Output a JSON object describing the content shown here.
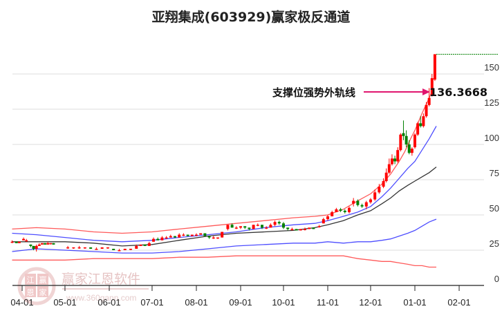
{
  "title": "亚翔集成(603929)赢家极反通道",
  "watermark": {
    "logo_chars": [
      "江",
      "赢",
      "恩",
      "家"
    ],
    "name": "赢家江恩软件",
    "url": "www.360gann.com"
  },
  "annotation": {
    "label": "支撑位强势外轨线",
    "value": "136.3668",
    "arrow_color": "#e0156e"
  },
  "colors": {
    "up": "#ff0000",
    "down": "#008000",
    "outer_band": "#ff3030",
    "inner_band": "#2020ff",
    "mid_line": "#111111",
    "grid": "#dddddd",
    "marker_line": "#008000"
  },
  "chart_data": {
    "type": "line",
    "title": "亚翔集成(603929)赢家极反通道",
    "xlabel": "",
    "ylabel": "",
    "ylim": [
      0,
      160
    ],
    "y_ticks": [
      0,
      25,
      50,
      75,
      100,
      125,
      150
    ],
    "x_ticks": [
      "04-01",
      "05-01",
      "06-01",
      "07-01",
      "08-01",
      "09-01",
      "10-01",
      "11-01",
      "12-01",
      "01-01",
      "02-01"
    ],
    "x_tick_days": [
      0,
      30,
      61,
      91,
      122,
      153,
      183,
      214,
      244,
      275,
      306
    ],
    "grid": true,
    "legend": "none",
    "annotation": {
      "text": "支撑位强势外轨线",
      "value": 136.3668
    },
    "top_marker_level": 164,
    "series": [
      {
        "name": "outer_upper",
        "role": "outer_band",
        "points": [
          [
            -7,
            40
          ],
          [
            10,
            41
          ],
          [
            30,
            40
          ],
          [
            50,
            38
          ],
          [
            70,
            37
          ],
          [
            91,
            38
          ],
          [
            110,
            40
          ],
          [
            130,
            42
          ],
          [
            150,
            44
          ],
          [
            170,
            46
          ],
          [
            190,
            48
          ],
          [
            205,
            49
          ],
          [
            214,
            50
          ],
          [
            225,
            54
          ],
          [
            235,
            60
          ],
          [
            244,
            65
          ],
          [
            252,
            72
          ],
          [
            258,
            79
          ],
          [
            264,
            88
          ],
          [
            268,
            95
          ],
          [
            272,
            104
          ],
          [
            275,
            110
          ],
          [
            280,
            122
          ],
          [
            285,
            133
          ],
          [
            288,
            140
          ]
        ]
      },
      {
        "name": "inner_upper",
        "role": "inner_band",
        "points": [
          [
            -7,
            37
          ],
          [
            10,
            36
          ],
          [
            30,
            34
          ],
          [
            50,
            32
          ],
          [
            70,
            31
          ],
          [
            91,
            32
          ],
          [
            110,
            34
          ],
          [
            130,
            36
          ],
          [
            150,
            38
          ],
          [
            170,
            41
          ],
          [
            190,
            43
          ],
          [
            205,
            44
          ],
          [
            214,
            46
          ],
          [
            225,
            49
          ],
          [
            235,
            52
          ],
          [
            244,
            56
          ],
          [
            252,
            63
          ],
          [
            258,
            69
          ],
          [
            264,
            76
          ],
          [
            270,
            83
          ],
          [
            275,
            88
          ],
          [
            280,
            96
          ],
          [
            285,
            104
          ],
          [
            290,
            113
          ]
        ]
      },
      {
        "name": "middle",
        "role": "mid_line",
        "points": [
          [
            -7,
            31
          ],
          [
            10,
            31
          ],
          [
            30,
            31
          ],
          [
            50,
            30
          ],
          [
            70,
            28
          ],
          [
            91,
            29
          ],
          [
            110,
            32
          ],
          [
            130,
            35
          ],
          [
            150,
            37
          ],
          [
            170,
            38
          ],
          [
            190,
            39
          ],
          [
            205,
            41
          ],
          [
            214,
            43
          ],
          [
            225,
            46
          ],
          [
            235,
            50
          ],
          [
            244,
            53
          ],
          [
            252,
            58
          ],
          [
            258,
            62
          ],
          [
            264,
            67
          ],
          [
            270,
            71
          ],
          [
            275,
            74
          ],
          [
            280,
            77
          ],
          [
            285,
            80
          ],
          [
            290,
            84
          ]
        ]
      },
      {
        "name": "inner_lower",
        "role": "inner_band",
        "points": [
          [
            -7,
            24
          ],
          [
            10,
            26
          ],
          [
            30,
            25
          ],
          [
            50,
            24
          ],
          [
            70,
            23
          ],
          [
            91,
            23
          ],
          [
            110,
            24
          ],
          [
            130,
            26
          ],
          [
            150,
            28
          ],
          [
            170,
            29
          ],
          [
            190,
            30
          ],
          [
            205,
            30
          ],
          [
            214,
            31
          ],
          [
            225,
            30
          ],
          [
            235,
            31
          ],
          [
            244,
            31
          ],
          [
            252,
            32
          ],
          [
            258,
            33
          ],
          [
            264,
            35
          ],
          [
            270,
            37
          ],
          [
            275,
            39
          ],
          [
            280,
            42
          ],
          [
            285,
            45
          ],
          [
            290,
            47
          ]
        ]
      },
      {
        "name": "outer_lower",
        "role": "outer_band",
        "points": [
          [
            -7,
            18
          ],
          [
            10,
            18
          ],
          [
            30,
            18
          ],
          [
            50,
            19
          ],
          [
            70,
            19
          ],
          [
            91,
            19
          ],
          [
            110,
            20
          ],
          [
            130,
            20
          ],
          [
            150,
            21
          ],
          [
            170,
            21
          ],
          [
            190,
            21
          ],
          [
            205,
            21
          ],
          [
            214,
            21
          ],
          [
            225,
            21
          ],
          [
            235,
            19
          ],
          [
            244,
            18
          ],
          [
            252,
            17
          ],
          [
            258,
            17
          ],
          [
            264,
            16
          ],
          [
            270,
            15
          ],
          [
            275,
            14
          ],
          [
            280,
            14
          ],
          [
            285,
            13
          ],
          [
            290,
            13
          ]
        ]
      }
    ],
    "candles": [
      {
        "d": -7,
        "o": 31,
        "c": 31,
        "h": 32,
        "l": 30
      },
      {
        "d": -4,
        "o": 31,
        "c": 30,
        "h": 31,
        "l": 30
      },
      {
        "d": -2,
        "o": 30,
        "c": 31,
        "h": 31,
        "l": 30
      },
      {
        "d": 1,
        "o": 32,
        "c": 33,
        "h": 34,
        "l": 32
      },
      {
        "d": 3,
        "o": 32,
        "c": 32,
        "h": 33,
        "l": 31
      },
      {
        "d": 6,
        "o": 29,
        "c": 28,
        "h": 29,
        "l": 27
      },
      {
        "d": 8,
        "o": 28,
        "c": 26,
        "h": 28,
        "l": 25
      },
      {
        "d": 10,
        "o": 26,
        "c": 28,
        "h": 29,
        "l": 24
      },
      {
        "d": 12,
        "o": 28,
        "c": 29,
        "h": 30,
        "l": 28
      },
      {
        "d": 14,
        "o": 29,
        "c": 30,
        "h": 30,
        "l": 29
      },
      {
        "d": 16,
        "o": 30,
        "c": 29,
        "h": 30,
        "l": 29
      },
      {
        "d": 18,
        "o": 29,
        "c": 30,
        "h": 31,
        "l": 29
      },
      {
        "d": 20,
        "o": 30,
        "c": 30,
        "h": 30,
        "l": 29
      },
      {
        "d": 22,
        "o": 30,
        "c": 29,
        "h": 30,
        "l": 29
      },
      {
        "d": 32,
        "o": 27,
        "c": 27,
        "h": 28,
        "l": 26
      },
      {
        "d": 36,
        "o": 27,
        "c": 27,
        "h": 27,
        "l": 26
      },
      {
        "d": 40,
        "o": 27,
        "c": 27,
        "h": 28,
        "l": 26
      },
      {
        "d": 44,
        "o": 27,
        "c": 27,
        "h": 27,
        "l": 26
      },
      {
        "d": 48,
        "o": 27,
        "c": 26,
        "h": 27,
        "l": 26
      },
      {
        "d": 52,
        "o": 26,
        "c": 26,
        "h": 27,
        "l": 26
      },
      {
        "d": 56,
        "o": 26,
        "c": 27,
        "h": 27,
        "l": 26
      },
      {
        "d": 60,
        "o": 27,
        "c": 27,
        "h": 27,
        "l": 26
      },
      {
        "d": 64,
        "o": 26,
        "c": 25,
        "h": 26,
        "l": 25
      },
      {
        "d": 68,
        "o": 25,
        "c": 25,
        "h": 26,
        "l": 25
      },
      {
        "d": 72,
        "o": 25,
        "c": 26,
        "h": 26,
        "l": 25
      },
      {
        "d": 76,
        "o": 26,
        "c": 26,
        "h": 26,
        "l": 25
      },
      {
        "d": 80,
        "o": 26,
        "c": 28,
        "h": 29,
        "l": 26
      },
      {
        "d": 83,
        "o": 28,
        "c": 29,
        "h": 29,
        "l": 28
      },
      {
        "d": 86,
        "o": 29,
        "c": 28,
        "h": 29,
        "l": 28
      },
      {
        "d": 89,
        "o": 28,
        "c": 30,
        "h": 31,
        "l": 28
      },
      {
        "d": 92,
        "o": 31,
        "c": 33,
        "h": 34,
        "l": 31
      },
      {
        "d": 95,
        "o": 33,
        "c": 32,
        "h": 34,
        "l": 32
      },
      {
        "d": 98,
        "o": 32,
        "c": 34,
        "h": 35,
        "l": 32
      },
      {
        "d": 101,
        "o": 34,
        "c": 34,
        "h": 35,
        "l": 33
      },
      {
        "d": 104,
        "o": 34,
        "c": 35,
        "h": 36,
        "l": 34
      },
      {
        "d": 107,
        "o": 35,
        "c": 34,
        "h": 35,
        "l": 34
      },
      {
        "d": 110,
        "o": 34,
        "c": 36,
        "h": 37,
        "l": 34
      },
      {
        "d": 113,
        "o": 36,
        "c": 36,
        "h": 37,
        "l": 35
      },
      {
        "d": 116,
        "o": 36,
        "c": 35,
        "h": 36,
        "l": 35
      },
      {
        "d": 119,
        "o": 35,
        "c": 36,
        "h": 36,
        "l": 35
      },
      {
        "d": 122,
        "o": 36,
        "c": 36,
        "h": 37,
        "l": 35
      },
      {
        "d": 125,
        "o": 36,
        "c": 37,
        "h": 37,
        "l": 36
      },
      {
        "d": 128,
        "o": 37,
        "c": 35,
        "h": 37,
        "l": 35
      },
      {
        "d": 131,
        "o": 35,
        "c": 34,
        "h": 35,
        "l": 33
      },
      {
        "d": 134,
        "o": 34,
        "c": 34,
        "h": 35,
        "l": 33
      },
      {
        "d": 137,
        "o": 34,
        "c": 34,
        "h": 34,
        "l": 33
      },
      {
        "d": 140,
        "o": 34,
        "c": 38,
        "h": 38,
        "l": 34
      },
      {
        "d": 144,
        "o": 40,
        "c": 43,
        "h": 43,
        "l": 39
      },
      {
        "d": 147,
        "o": 43,
        "c": 41,
        "h": 44,
        "l": 41
      },
      {
        "d": 150,
        "o": 41,
        "c": 41,
        "h": 42,
        "l": 40
      },
      {
        "d": 153,
        "o": 41,
        "c": 42,
        "h": 42,
        "l": 40
      },
      {
        "d": 156,
        "o": 42,
        "c": 41,
        "h": 42,
        "l": 40
      },
      {
        "d": 159,
        "o": 41,
        "c": 40,
        "h": 41,
        "l": 39
      },
      {
        "d": 162,
        "o": 40,
        "c": 43,
        "h": 43,
        "l": 40
      },
      {
        "d": 165,
        "o": 43,
        "c": 43,
        "h": 44,
        "l": 42
      },
      {
        "d": 168,
        "o": 43,
        "c": 41,
        "h": 43,
        "l": 40
      },
      {
        "d": 171,
        "o": 41,
        "c": 41,
        "h": 42,
        "l": 40
      },
      {
        "d": 174,
        "o": 41,
        "c": 43,
        "h": 44,
        "l": 41
      },
      {
        "d": 177,
        "o": 43,
        "c": 45,
        "h": 46,
        "l": 42
      },
      {
        "d": 180,
        "o": 45,
        "c": 44,
        "h": 46,
        "l": 43
      },
      {
        "d": 183,
        "o": 44,
        "c": 41,
        "h": 45,
        "l": 40
      },
      {
        "d": 186,
        "o": 41,
        "c": 40,
        "h": 41,
        "l": 39
      },
      {
        "d": 189,
        "o": 40,
        "c": 40,
        "h": 41,
        "l": 39
      },
      {
        "d": 192,
        "o": 40,
        "c": 39,
        "h": 40,
        "l": 39
      },
      {
        "d": 195,
        "o": 39,
        "c": 40,
        "h": 40,
        "l": 39
      },
      {
        "d": 198,
        "o": 40,
        "c": 40,
        "h": 41,
        "l": 39
      },
      {
        "d": 201,
        "o": 40,
        "c": 41,
        "h": 41,
        "l": 40
      },
      {
        "d": 204,
        "o": 41,
        "c": 40,
        "h": 41,
        "l": 40
      },
      {
        "d": 208,
        "o": 42,
        "c": 42,
        "h": 43,
        "l": 41
      },
      {
        "d": 211,
        "o": 44,
        "c": 47,
        "h": 48,
        "l": 44
      },
      {
        "d": 214,
        "o": 47,
        "c": 49,
        "h": 50,
        "l": 46
      },
      {
        "d": 217,
        "o": 49,
        "c": 52,
        "h": 53,
        "l": 49
      },
      {
        "d": 220,
        "o": 52,
        "c": 54,
        "h": 55,
        "l": 52
      },
      {
        "d": 223,
        "o": 54,
        "c": 53,
        "h": 55,
        "l": 52
      },
      {
        "d": 226,
        "o": 53,
        "c": 52,
        "h": 54,
        "l": 51
      },
      {
        "d": 229,
        "o": 52,
        "c": 55,
        "h": 56,
        "l": 51
      },
      {
        "d": 232,
        "o": 58,
        "c": 60,
        "h": 62,
        "l": 56
      },
      {
        "d": 235,
        "o": 60,
        "c": 57,
        "h": 61,
        "l": 56
      },
      {
        "d": 238,
        "o": 57,
        "c": 56,
        "h": 58,
        "l": 55
      },
      {
        "d": 241,
        "o": 56,
        "c": 59,
        "h": 60,
        "l": 54
      },
      {
        "d": 244,
        "o": 59,
        "c": 61,
        "h": 62,
        "l": 58
      },
      {
        "d": 247,
        "o": 61,
        "c": 66,
        "h": 68,
        "l": 60
      },
      {
        "d": 250,
        "o": 66,
        "c": 70,
        "h": 72,
        "l": 65
      },
      {
        "d": 253,
        "o": 70,
        "c": 74,
        "h": 76,
        "l": 69
      },
      {
        "d": 255,
        "o": 74,
        "c": 80,
        "h": 83,
        "l": 73
      },
      {
        "d": 257,
        "o": 80,
        "c": 86,
        "h": 90,
        "l": 79
      },
      {
        "d": 259,
        "o": 86,
        "c": 90,
        "h": 93,
        "l": 85
      },
      {
        "d": 261,
        "o": 90,
        "c": 88,
        "h": 92,
        "l": 86
      },
      {
        "d": 263,
        "o": 88,
        "c": 96,
        "h": 98,
        "l": 87
      },
      {
        "d": 265,
        "o": 96,
        "c": 107,
        "h": 108,
        "l": 95
      },
      {
        "d": 267,
        "o": 108,
        "c": 106,
        "h": 117,
        "l": 103
      },
      {
        "d": 269,
        "o": 106,
        "c": 100,
        "h": 110,
        "l": 98
      },
      {
        "d": 271,
        "o": 100,
        "c": 94,
        "h": 103,
        "l": 93
      },
      {
        "d": 273,
        "o": 94,
        "c": 97,
        "h": 98,
        "l": 92
      },
      {
        "d": 275,
        "o": 98,
        "c": 107,
        "h": 108,
        "l": 97
      },
      {
        "d": 277,
        "o": 107,
        "c": 115,
        "h": 116,
        "l": 106
      },
      {
        "d": 279,
        "o": 115,
        "c": 113,
        "h": 120,
        "l": 112
      },
      {
        "d": 281,
        "o": 113,
        "c": 120,
        "h": 122,
        "l": 112
      },
      {
        "d": 283,
        "o": 120,
        "c": 128,
        "h": 130,
        "l": 119
      },
      {
        "d": 285,
        "o": 128,
        "c": 133,
        "h": 140,
        "l": 127
      },
      {
        "d": 287,
        "o": 135,
        "c": 147,
        "h": 150,
        "l": 134
      },
      {
        "d": 289,
        "o": 146,
        "c": 164,
        "h": 164,
        "l": 145
      }
    ]
  }
}
